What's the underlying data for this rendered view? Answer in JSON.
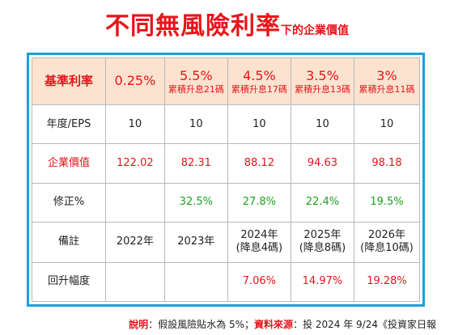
{
  "title": {
    "main": "不同無風險利率",
    "sub": "下的企業價值"
  },
  "table": {
    "header": {
      "label": "基準利率",
      "cols": [
        {
          "rate": "0.25%",
          "note": ""
        },
        {
          "rate": "5.5%",
          "note": "累積升息21碼"
        },
        {
          "rate": "4.5%",
          "note": "累積升息17碼"
        },
        {
          "rate": "3.5%",
          "note": "累積升息13碼"
        },
        {
          "rate": "3%",
          "note": "累積升息11碼"
        }
      ]
    },
    "rows": [
      {
        "label": "年度/EPS",
        "cells": [
          "10",
          "10",
          "10",
          "10",
          "10"
        ]
      },
      {
        "label": "企業價值",
        "cells": [
          "122.02",
          "82.31",
          "88.12",
          "94.63",
          "98.18"
        ]
      },
      {
        "label": "修正%",
        "cells": [
          "",
          "32.5%",
          "27.8%",
          "22.4%",
          "19.5%"
        ]
      },
      {
        "label": "備註",
        "cells": [
          {
            "l1": "2022年",
            "l2": ""
          },
          {
            "l1": "2023年",
            "l2": ""
          },
          {
            "l1": "2024年",
            "l2": "(降息4碼)"
          },
          {
            "l1": "2025年",
            "l2": "(降息8碼)"
          },
          {
            "l1": "2026年",
            "l2": "(降息10碼)"
          }
        ]
      },
      {
        "label": "回升幅度",
        "cells": [
          "",
          "",
          "7.06%",
          "14.97%",
          "19.28%"
        ]
      }
    ]
  },
  "footnote": {
    "label1": "說明",
    "text1": "：假設風險貼水為 5%；",
    "label2": "資料來源",
    "text2": "：投 2024 年 9/24《投資家日報"
  },
  "colors": {
    "red": "#e8141b",
    "green": "#1fa01f",
    "header_bg": "#fbe3cf",
    "frame": "#1aa0d8"
  }
}
